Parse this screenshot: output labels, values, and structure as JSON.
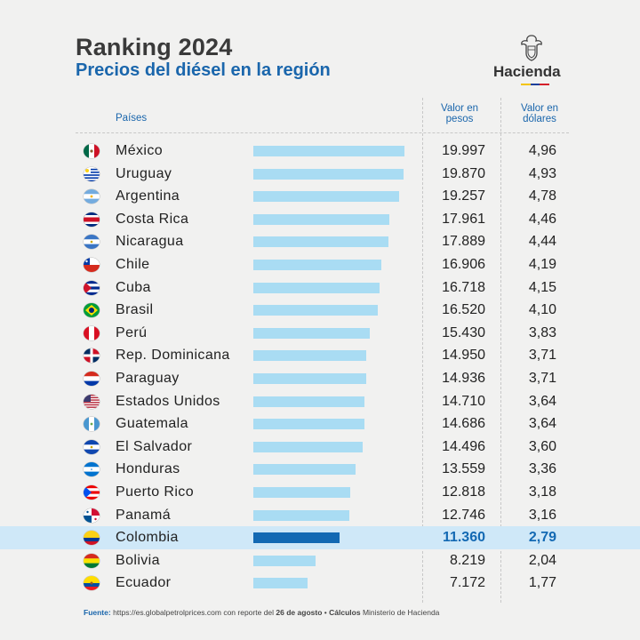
{
  "header": {
    "title": "Ranking 2024",
    "subtitle": "Precios del diésel en la región",
    "logo_text": "Hacienda"
  },
  "columns": {
    "countries": "Países",
    "pesos": "Valor en pesos",
    "usd": "Valor en dólares"
  },
  "chart_data": {
    "type": "bar",
    "title": "Ranking 2024",
    "subtitle": "Precios del diésel en la región",
    "orientation": "horizontal",
    "highlighted_category": "Colombia",
    "colors": {
      "bar": "#a9dcf3",
      "highlight_bar": "#1369b3",
      "highlight_row": "#cfe8f8",
      "accent": "#1a66ac"
    },
    "categories": [
      "México",
      "Uruguay",
      "Argentina",
      "Costa Rica",
      "Nicaragua",
      "Chile",
      "Cuba",
      "Brasil",
      "Perú",
      "Rep. Dominicana",
      "Paraguay",
      "Estados Unidos",
      "Guatemala",
      "El Salvador",
      "Honduras",
      "Puerto Rico",
      "Panamá",
      "Colombia",
      "Bolivia",
      "Ecuador"
    ],
    "series": [
      {
        "name": "Valor en pesos",
        "values": [
          19997,
          19870,
          19257,
          17961,
          17889,
          16906,
          16718,
          16520,
          15430,
          14950,
          14936,
          14710,
          14686,
          14496,
          13559,
          12818,
          12746,
          11360,
          8219,
          7172
        ]
      },
      {
        "name": "Valor en dólares",
        "values": [
          4.96,
          4.93,
          4.78,
          4.46,
          4.44,
          4.19,
          4.15,
          4.1,
          3.83,
          3.71,
          3.71,
          3.64,
          3.64,
          3.6,
          3.36,
          3.18,
          3.16,
          2.79,
          2.04,
          1.77
        ]
      }
    ],
    "value_labels_pesos": [
      "19.997",
      "19.870",
      "19.257",
      "17.961",
      "17.889",
      "16.906",
      "16.718",
      "16.520",
      "15.430",
      "14.950",
      "14.936",
      "14.710",
      "14.686",
      "14.496",
      "13.559",
      "12.818",
      "12.746",
      "11.360",
      "8.219",
      "7.172"
    ],
    "value_labels_usd": [
      "4,96",
      "4,93",
      "4,78",
      "4,46",
      "4,44",
      "4,19",
      "4,15",
      "4,10",
      "3,83",
      "3,71",
      "3,71",
      "3,64",
      "3,64",
      "3,60",
      "3,36",
      "3,18",
      "3,16",
      "2,79",
      "2,04",
      "1,77"
    ]
  },
  "flags": [
    "mexico-flag-icon",
    "uruguay-flag-icon",
    "argentina-flag-icon",
    "costa-rica-flag-icon",
    "nicaragua-flag-icon",
    "chile-flag-icon",
    "cuba-flag-icon",
    "brasil-flag-icon",
    "peru-flag-icon",
    "rep-dominicana-flag-icon",
    "paraguay-flag-icon",
    "estados-unidos-flag-icon",
    "guatemala-flag-icon",
    "el-salvador-flag-icon",
    "honduras-flag-icon",
    "puerto-rico-flag-icon",
    "panama-flag-icon",
    "colombia-flag-icon",
    "bolivia-flag-icon",
    "ecuador-flag-icon"
  ],
  "footer": {
    "source_label": "Fuente:",
    "source_text": "https://es.globalpetrolprices.com con reporte del",
    "source_date": "26 de agosto",
    "separator": "•",
    "calc_label": "Cálculos",
    "calc_text": "Ministerio de Hacienda"
  }
}
